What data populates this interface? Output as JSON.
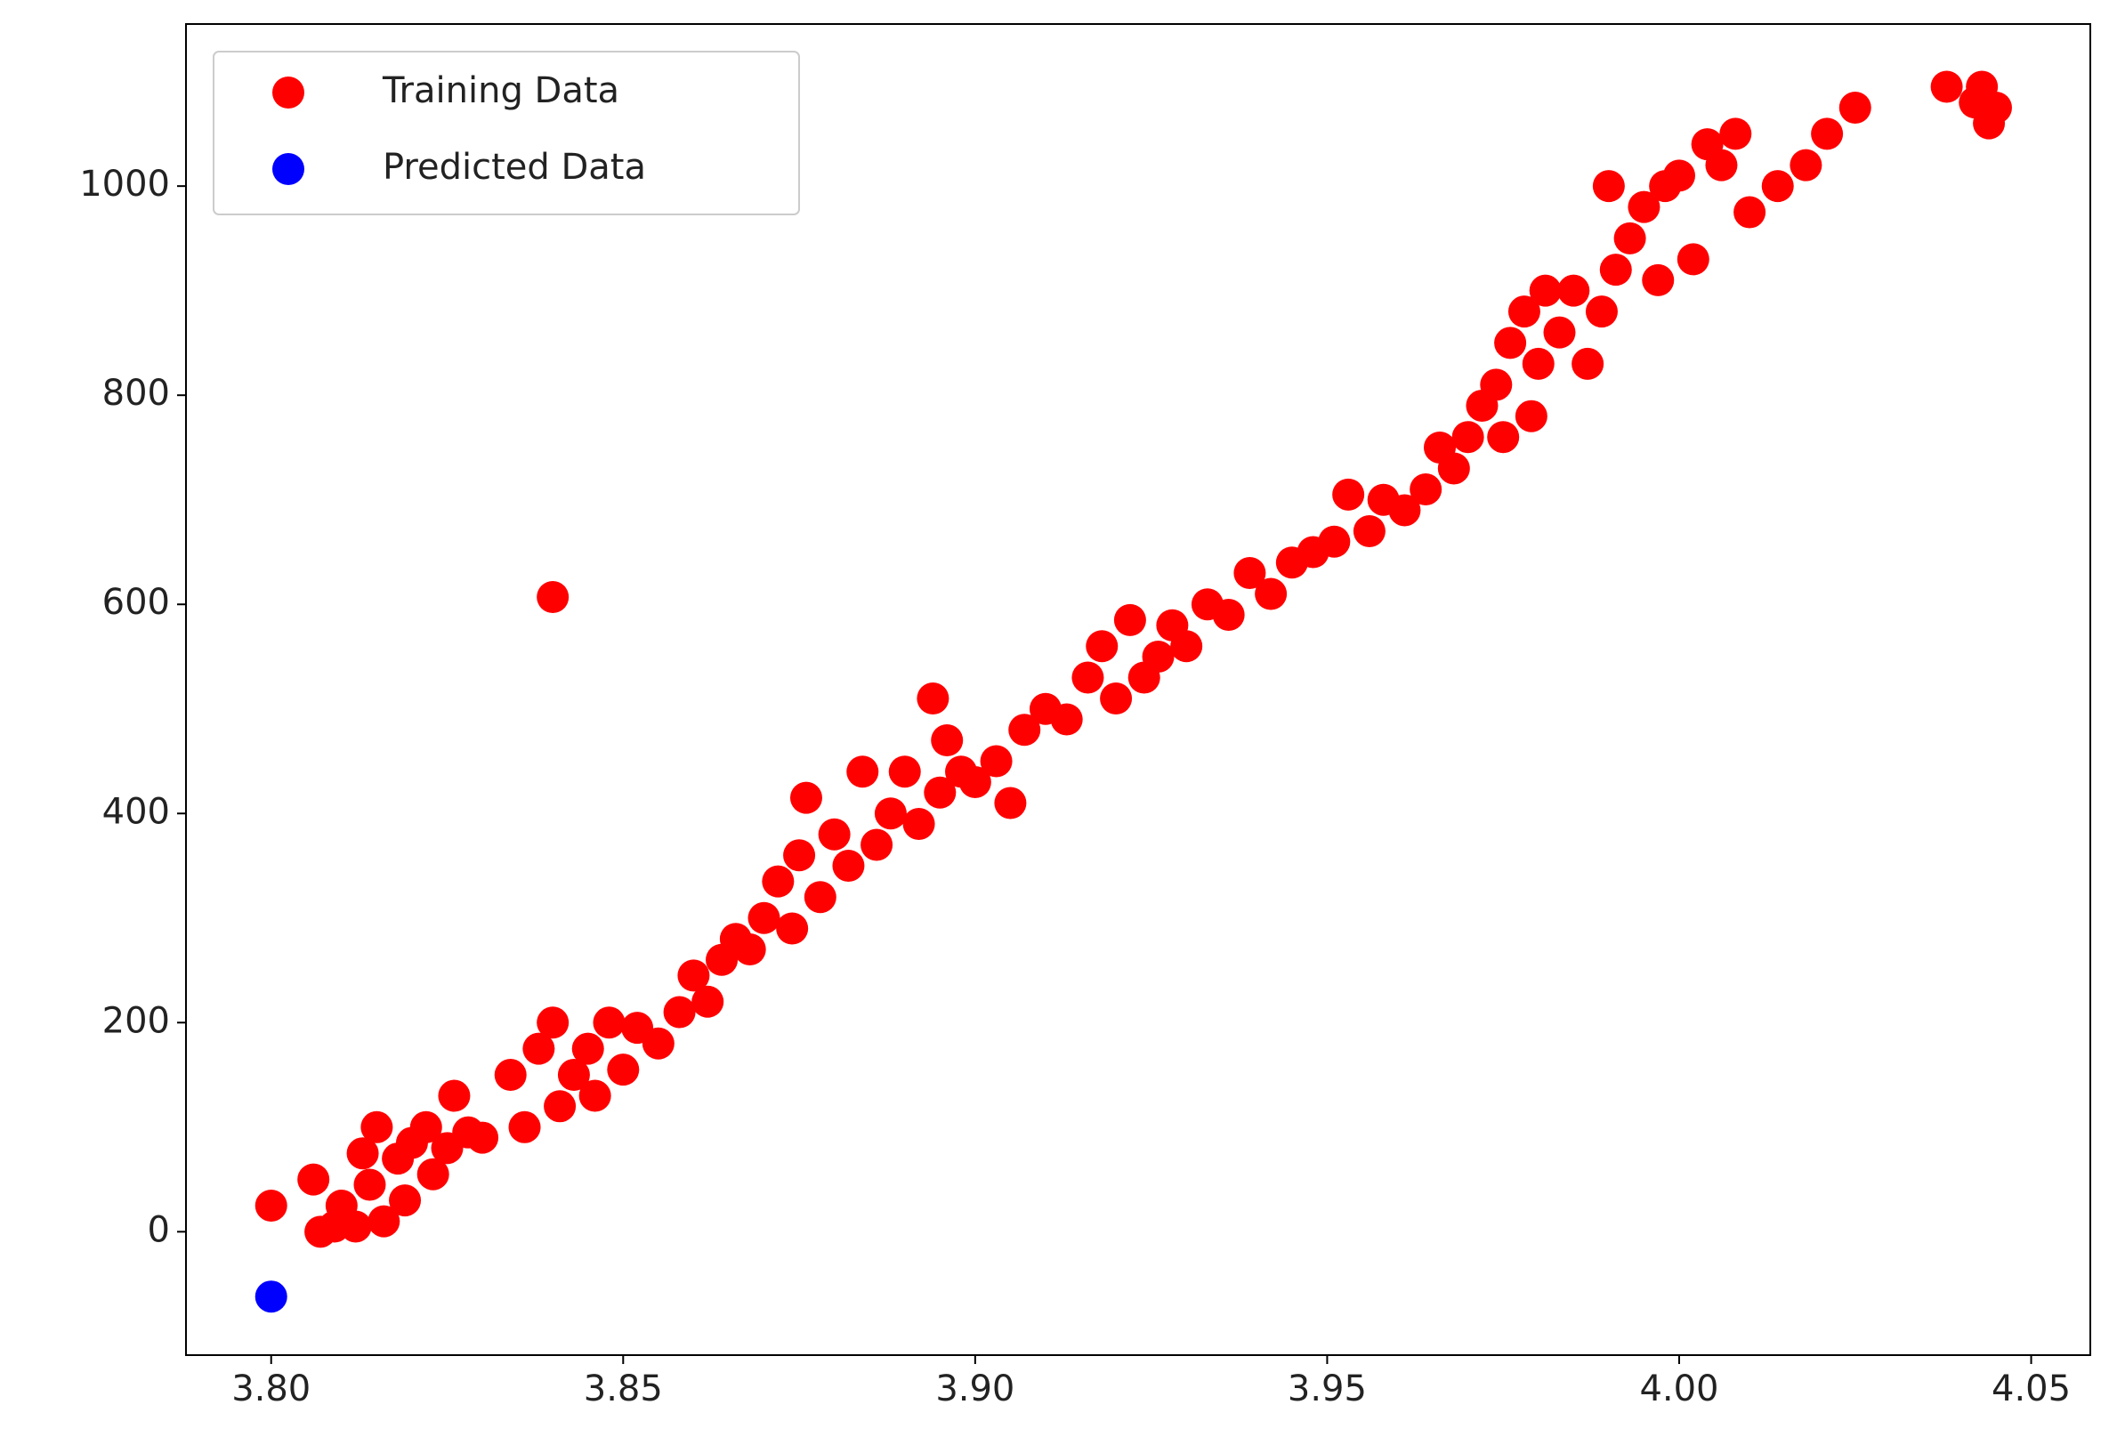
{
  "chart_data": {
    "type": "scatter",
    "xlim": [
      3.7879,
      4.0584
    ],
    "ylim": [
      -118,
      1155
    ],
    "xticks": [
      {
        "value": 3.8,
        "label": "3.80"
      },
      {
        "value": 3.85,
        "label": "3.85"
      },
      {
        "value": 3.9,
        "label": "3.90"
      },
      {
        "value": 3.95,
        "label": "3.95"
      },
      {
        "value": 4.0,
        "label": "4.00"
      },
      {
        "value": 4.05,
        "label": "4.05"
      }
    ],
    "yticks": [
      0,
      200,
      400,
      600,
      800,
      1000
    ],
    "legend": "upper left",
    "series": [
      {
        "name": "Training Data",
        "color": "#ff0000",
        "x": [
          3.8,
          3.806,
          3.807,
          3.809,
          3.81,
          3.812,
          3.813,
          3.814,
          3.815,
          3.816,
          3.818,
          3.819,
          3.82,
          3.822,
          3.823,
          3.825,
          3.826,
          3.828,
          3.83,
          3.834,
          3.836,
          3.838,
          3.84,
          3.84,
          3.841,
          3.843,
          3.845,
          3.846,
          3.848,
          3.85,
          3.852,
          3.855,
          3.858,
          3.86,
          3.862,
          3.864,
          3.866,
          3.868,
          3.87,
          3.872,
          3.874,
          3.875,
          3.876,
          3.878,
          3.88,
          3.882,
          3.884,
          3.886,
          3.888,
          3.89,
          3.892,
          3.894,
          3.895,
          3.896,
          3.898,
          3.9,
          3.903,
          3.905,
          3.907,
          3.91,
          3.913,
          3.916,
          3.918,
          3.92,
          3.922,
          3.924,
          3.926,
          3.928,
          3.93,
          3.933,
          3.936,
          3.939,
          3.942,
          3.945,
          3.948,
          3.951,
          3.953,
          3.956,
          3.958,
          3.961,
          3.964,
          3.966,
          3.968,
          3.97,
          3.972,
          3.974,
          3.975,
          3.976,
          3.978,
          3.979,
          3.98,
          3.981,
          3.983,
          3.985,
          3.987,
          3.989,
          3.99,
          3.991,
          3.993,
          3.995,
          3.997,
          3.998,
          4.0,
          4.002,
          4.004,
          4.006,
          4.008,
          4.01,
          4.014,
          4.018,
          4.021,
          4.025,
          4.038,
          4.042,
          4.043,
          4.044,
          4.045
        ],
        "values": [
          25,
          50,
          0,
          5,
          25,
          5,
          75,
          45,
          100,
          10,
          70,
          30,
          85,
          100,
          55,
          80,
          130,
          95,
          90,
          150,
          100,
          175,
          200,
          607,
          120,
          150,
          175,
          130,
          200,
          155,
          195,
          180,
          210,
          245,
          220,
          260,
          280,
          270,
          300,
          335,
          290,
          360,
          415,
          320,
          380,
          350,
          440,
          370,
          400,
          440,
          390,
          510,
          420,
          470,
          440,
          430,
          450,
          410,
          480,
          500,
          490,
          530,
          560,
          510,
          585,
          530,
          550,
          580,
          560,
          600,
          590,
          630,
          610,
          640,
          650,
          660,
          705,
          670,
          700,
          690,
          710,
          750,
          730,
          760,
          790,
          810,
          760,
          850,
          880,
          780,
          830,
          900,
          860,
          900,
          830,
          880,
          1000,
          920,
          950,
          980,
          910,
          1000,
          1010,
          930,
          1040,
          1020,
          1050,
          975,
          1000,
          1020,
          1050,
          1075,
          1095,
          1080,
          1095,
          1060,
          1075
        ]
      },
      {
        "name": "Predicted Data",
        "color": "#0000ff",
        "x": [
          3.8
        ],
        "values": [
          -62
        ]
      }
    ]
  }
}
